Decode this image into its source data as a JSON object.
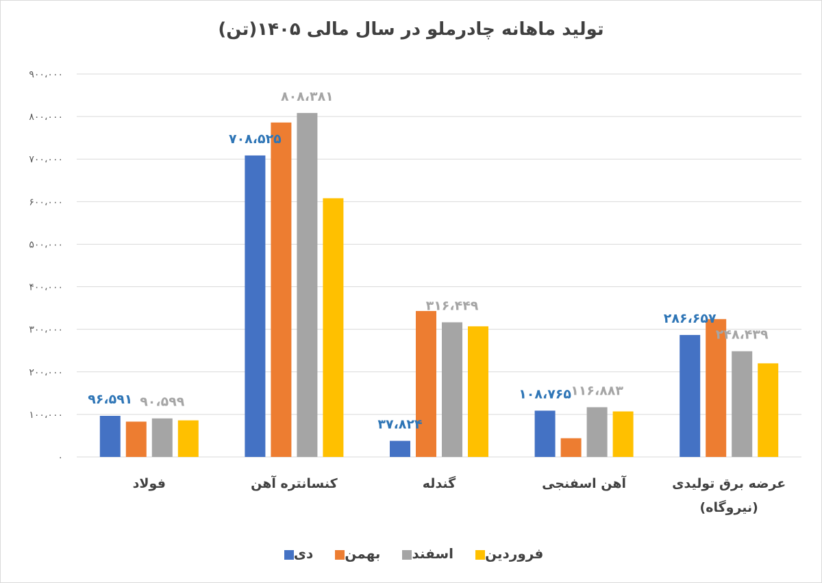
{
  "chart_data": {
    "type": "bar",
    "title": "تولید ماهانه چادرملو در سال مالی ۱۴۰۵(تن)",
    "categories": [
      [
        "فولاد"
      ],
      [
        "کنسانتره آهن"
      ],
      [
        "گندله"
      ],
      [
        "آهن اسفنجی"
      ],
      [
        "عرضه برق تولیدی",
        "(نیروگاه)"
      ]
    ],
    "series": [
      {
        "name": "دی",
        "color": "#4472C4",
        "values": [
          96591,
          708525,
          37824,
          108765,
          286657
        ]
      },
      {
        "name": "بهمن",
        "color": "#ED7D31",
        "values": [
          83000,
          786000,
          343000,
          44000,
          324000
        ]
      },
      {
        "name": "اسفند",
        "color": "#A5A5A5",
        "values": [
          90599,
          808381,
          316449,
          116883,
          248439
        ]
      },
      {
        "name": "فروردین",
        "color": "#FFC000",
        "values": [
          86000,
          608000,
          307000,
          107000,
          220000
        ]
      }
    ],
    "data_labels": [
      {
        "series": 0,
        "category": 0,
        "text": "۹۶،۵۹۱",
        "color": "#2E75B6"
      },
      {
        "series": 2,
        "category": 0,
        "text": "۹۰،۵۹۹",
        "color": "#A5A5A5"
      },
      {
        "series": 0,
        "category": 1,
        "text": "۷۰۸،۵۲۵",
        "color": "#2E75B6"
      },
      {
        "series": 2,
        "category": 1,
        "text": "۸۰۸،۳۸۱",
        "color": "#A5A5A5"
      },
      {
        "series": 0,
        "category": 2,
        "text": "۳۷،۸۲۴",
        "color": "#2E75B6"
      },
      {
        "series": 2,
        "category": 2,
        "text": "۳۱۶،۴۴۹",
        "color": "#A5A5A5"
      },
      {
        "series": 0,
        "category": 3,
        "text": "۱۰۸،۷۶۵",
        "color": "#2E75B6"
      },
      {
        "series": 2,
        "category": 3,
        "text": "۱۱۶،۸۸۳",
        "color": "#A5A5A5"
      },
      {
        "series": 0,
        "category": 4,
        "text": "۲۸۶،۶۵۷",
        "color": "#2E75B6"
      },
      {
        "series": 2,
        "category": 4,
        "text": "۲۴۸،۴۳۹",
        "color": "#A5A5A5"
      }
    ],
    "ylim": [
      0,
      900000
    ],
    "ytick_labels": [
      "۰",
      "۱۰۰،۰۰۰",
      "۲۰۰،۰۰۰",
      "۳۰۰،۰۰۰",
      "۴۰۰،۰۰۰",
      "۵۰۰،۰۰۰",
      "۶۰۰،۰۰۰",
      "۷۰۰،۰۰۰",
      "۸۰۰،۰۰۰",
      "۹۰۰،۰۰۰"
    ],
    "xlabel": "",
    "ylabel": "",
    "grid": true,
    "legend_position": "bottom"
  }
}
